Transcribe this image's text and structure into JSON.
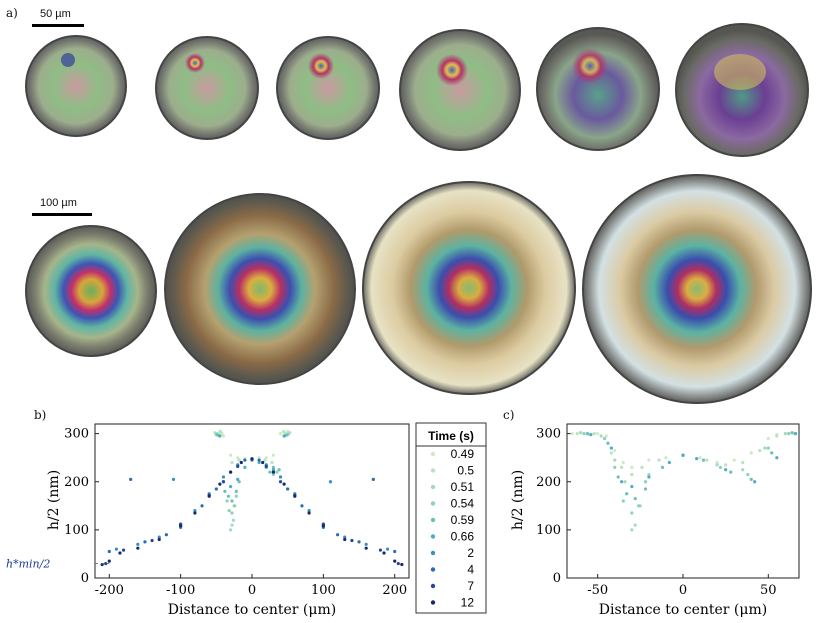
{
  "panel_labels": {
    "a": "a)",
    "b": "b)",
    "c": "c)"
  },
  "scale_bars": {
    "top": "50 µm",
    "bottom": "100 µm"
  },
  "legend": {
    "title": "Time (s)",
    "entries": [
      "0.49",
      "0.5",
      "0.51",
      "0.54",
      "0.59",
      "0.66",
      "2",
      "4",
      "7",
      "12"
    ],
    "colors": [
      "#ccebc5",
      "#b8e3c0",
      "#a3dbbd",
      "#8ed0b9",
      "#6cc0b6",
      "#4aaec5",
      "#3a8ec0",
      "#2b6cb0",
      "#23479a",
      "#162a6b"
    ]
  },
  "annotation": {
    "hmin": "h*min/2"
  },
  "chart_data": [
    {
      "type": "scatter",
      "panel": "b",
      "xlabel": "Distance to center (μm)",
      "ylabel": "h/2 (nm)",
      "xlim": [
        -220,
        220
      ],
      "ylim": [
        0,
        320
      ],
      "xticks": [
        "-200",
        "-100",
        "0",
        "100",
        "200"
      ],
      "yticks": [
        "0",
        "100",
        "200",
        "300"
      ],
      "xtick_values": [
        -200,
        -100,
        0,
        100,
        200
      ],
      "ytick_values": [
        0,
        100,
        200,
        300
      ],
      "hmin_value": 30,
      "series": [
        {
          "name": "0.49",
          "points": [
            [
              -48,
              300
            ],
            [
              -45,
              305
            ],
            [
              -42,
              300
            ],
            [
              -40,
              295
            ],
            [
              40,
              300
            ],
            [
              44,
              305
            ],
            [
              48,
              300
            ],
            [
              50,
              305
            ],
            [
              -30,
              255
            ],
            [
              -20,
              250
            ],
            [
              -10,
              248
            ],
            [
              0,
              248
            ],
            [
              10,
              250
            ],
            [
              20,
              250
            ],
            [
              30,
              255
            ]
          ]
        },
        {
          "name": "0.5",
          "points": [
            [
              -52,
              302
            ],
            [
              -47,
              298
            ],
            [
              -44,
              304
            ],
            [
              45,
              303
            ],
            [
              49,
              298
            ],
            [
              53,
              302
            ],
            [
              -28,
              240
            ],
            [
              -18,
              245
            ],
            [
              0,
              245
            ],
            [
              18,
              245
            ],
            [
              28,
              240
            ]
          ]
        },
        {
          "name": "0.51",
          "points": [
            [
              -50,
              300
            ],
            [
              -46,
              296
            ],
            [
              46,
              296
            ],
            [
              51,
              300
            ],
            [
              -30,
              100
            ],
            [
              -28,
              110
            ],
            [
              -26,
              120
            ],
            [
              -24,
              150
            ]
          ]
        },
        {
          "name": "0.54",
          "points": [
            [
              -50,
              298
            ],
            [
              50,
              298
            ],
            [
              -32,
              140
            ],
            [
              -28,
              135
            ],
            [
              -25,
              150
            ],
            [
              -22,
              170
            ],
            [
              -35,
              160
            ],
            [
              30,
              215
            ],
            [
              35,
              220
            ]
          ]
        },
        {
          "name": "0.59",
          "points": [
            [
              -48,
              297
            ],
            [
              48,
              297
            ],
            [
              -38,
              180
            ],
            [
              -33,
              170
            ],
            [
              -28,
              160
            ],
            [
              -22,
              180
            ],
            [
              -18,
              200
            ],
            [
              25,
              220
            ],
            [
              30,
              230
            ],
            [
              38,
              225
            ]
          ]
        },
        {
          "name": "0.66",
          "points": [
            [
              -45,
              295
            ],
            [
              45,
              295
            ],
            [
              -40,
              200
            ],
            [
              -30,
              190
            ],
            [
              -20,
              205
            ],
            [
              -10,
              230
            ],
            [
              0,
              245
            ],
            [
              10,
              240
            ],
            [
              20,
              230
            ],
            [
              30,
              225
            ],
            [
              40,
              210
            ]
          ]
        },
        {
          "name": "2",
          "points": [
            [
              -190,
              60
            ],
            [
              -160,
              70
            ],
            [
              -130,
              85
            ],
            [
              -110,
              205
            ],
            [
              -100,
              105
            ],
            [
              -80,
              140
            ],
            [
              -60,
              175
            ],
            [
              -40,
              210
            ],
            [
              -20,
              235
            ],
            [
              0,
              248
            ],
            [
              20,
              235
            ],
            [
              40,
              210
            ],
            [
              60,
              175
            ],
            [
              80,
              140
            ],
            [
              100,
              105
            ],
            [
              110,
              200
            ],
            [
              130,
              85
            ],
            [
              160,
              70
            ],
            [
              190,
              60
            ]
          ]
        },
        {
          "name": "4",
          "points": [
            [
              -200,
              55
            ],
            [
              -170,
              205
            ],
            [
              -150,
              75
            ],
            [
              -120,
              90
            ],
            [
              -100,
              110
            ],
            [
              -70,
              150
            ],
            [
              -50,
              185
            ],
            [
              -30,
              220
            ],
            [
              -10,
              245
            ],
            [
              10,
              245
            ],
            [
              30,
              220
            ],
            [
              50,
              185
            ],
            [
              70,
              150
            ],
            [
              100,
              110
            ],
            [
              120,
              90
            ],
            [
              150,
              75
            ],
            [
              170,
              205
            ],
            [
              200,
              55
            ]
          ]
        },
        {
          "name": "7",
          "points": [
            [
              -205,
              30
            ],
            [
              -180,
              58
            ],
            [
              -140,
              78
            ],
            [
              -100,
              112
            ],
            [
              -60,
              172
            ],
            [
              -40,
              200
            ],
            [
              -20,
              232
            ],
            [
              0,
              247
            ],
            [
              20,
              232
            ],
            [
              40,
              200
            ],
            [
              60,
              172
            ],
            [
              100,
              112
            ],
            [
              140,
              78
            ],
            [
              180,
              58
            ],
            [
              205,
              30
            ]
          ]
        },
        {
          "name": "12",
          "points": [
            [
              -210,
              28
            ],
            [
              -200,
              35
            ],
            [
              -185,
              52
            ],
            [
              -160,
              62
            ],
            [
              -130,
              80
            ],
            [
              -100,
              108
            ],
            [
              -80,
              135
            ],
            [
              -60,
              170
            ],
            [
              -45,
              195
            ],
            [
              -30,
              220
            ],
            [
              -15,
              240
            ],
            [
              0,
              247
            ],
            [
              15,
              240
            ],
            [
              30,
              220
            ],
            [
              45,
              195
            ],
            [
              60,
              170
            ],
            [
              80,
              135
            ],
            [
              100,
              108
            ],
            [
              130,
              80
            ],
            [
              160,
              62
            ],
            [
              185,
              52
            ],
            [
              200,
              35
            ],
            [
              210,
              28
            ]
          ]
        }
      ]
    },
    {
      "type": "scatter",
      "panel": "c",
      "xlabel": "Distance to center (μm)",
      "ylabel": "h/2 (nm)",
      "xlim": [
        -68,
        68
      ],
      "ylim": [
        0,
        320
      ],
      "xticks": [
        "-50",
        "0",
        "50"
      ],
      "yticks": [
        "0",
        "100",
        "200",
        "300"
      ],
      "xtick_values": [
        -50,
        0,
        50
      ],
      "ytick_values": [
        0,
        100,
        200,
        300
      ],
      "series": [
        {
          "name": "0.49",
          "points": [
            [
              -65,
              300
            ],
            [
              -60,
              302
            ],
            [
              -55,
              298
            ],
            [
              -50,
              300
            ],
            [
              -45,
              295
            ],
            [
              -40,
              265
            ],
            [
              -35,
              240
            ],
            [
              -30,
              230
            ],
            [
              -20,
              245
            ],
            [
              -10,
              250
            ],
            [
              0,
              255
            ],
            [
              10,
              250
            ],
            [
              20,
              240
            ],
            [
              30,
              245
            ],
            [
              40,
              260
            ],
            [
              50,
              290
            ],
            [
              55,
              298
            ],
            [
              60,
              300
            ],
            [
              65,
              300
            ]
          ]
        },
        {
          "name": "0.5",
          "points": [
            [
              -62,
              300
            ],
            [
              -52,
              300
            ],
            [
              -42,
              260
            ],
            [
              -36,
              230
            ],
            [
              -30,
              215
            ],
            [
              -24,
              230
            ],
            [
              -14,
              245
            ],
            [
              0,
              255
            ],
            [
              14,
              245
            ],
            [
              25,
              235
            ],
            [
              35,
              240
            ],
            [
              45,
              265
            ],
            [
              55,
              295
            ],
            [
              62,
              300
            ]
          ]
        },
        {
          "name": "0.51",
          "points": [
            [
              -60,
              302
            ],
            [
              -48,
              295
            ],
            [
              -40,
              245
            ],
            [
              -34,
              200
            ],
            [
              -30,
              100
            ],
            [
              -28,
              110
            ],
            [
              -25,
              150
            ],
            [
              -20,
              215
            ],
            [
              0,
              255
            ],
            [
              20,
              235
            ],
            [
              35,
              225
            ],
            [
              48,
              270
            ],
            [
              60,
              300
            ]
          ]
        },
        {
          "name": "0.54",
          "points": [
            [
              -58,
              300
            ],
            [
              -46,
              290
            ],
            [
              -40,
              230
            ],
            [
              -35,
              160
            ],
            [
              -30,
              135
            ],
            [
              -26,
              150
            ],
            [
              -22,
              200
            ],
            [
              0,
              255
            ],
            [
              22,
              230
            ],
            [
              38,
              215
            ],
            [
              50,
              270
            ],
            [
              62,
              300
            ]
          ]
        },
        {
          "name": "0.59",
          "points": [
            [
              -56,
              300
            ],
            [
              -44,
              280
            ],
            [
              -38,
              210
            ],
            [
              -33,
              175
            ],
            [
              -28,
              165
            ],
            [
              -22,
              185
            ],
            [
              -12,
              230
            ],
            [
              0,
              255
            ],
            [
              12,
              245
            ],
            [
              28,
              220
            ],
            [
              40,
              205
            ],
            [
              52,
              260
            ],
            [
              64,
              302
            ]
          ]
        },
        {
          "name": "0.66",
          "points": [
            [
              -54,
              298
            ],
            [
              -42,
              270
            ],
            [
              -36,
              200
            ],
            [
              -30,
              190
            ],
            [
              -20,
              210
            ],
            [
              -8,
              240
            ],
            [
              0,
              255
            ],
            [
              8,
              248
            ],
            [
              25,
              225
            ],
            [
              42,
              200
            ],
            [
              55,
              250
            ],
            [
              66,
              300
            ]
          ]
        }
      ]
    }
  ]
}
